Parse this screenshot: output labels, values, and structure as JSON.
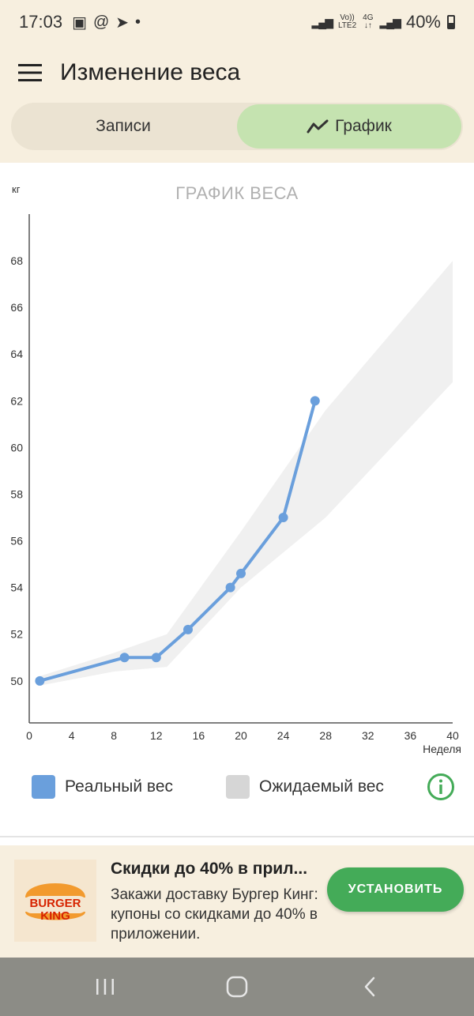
{
  "status_bar": {
    "time": "17:03",
    "net_top": "Vo))",
    "net_bottom": "LTE2",
    "net_type": "4G",
    "battery": "40%"
  },
  "app_bar": {
    "title": "Изменение веса"
  },
  "tabs": [
    {
      "label": "Записи",
      "active": false
    },
    {
      "label": "График",
      "active": true
    }
  ],
  "chart_data": {
    "type": "line",
    "title": "ГРАФИК ВЕСА",
    "ylabel": "кг",
    "xlabel": "Неделя",
    "xlim": [
      0,
      40
    ],
    "ylim": [
      48.2,
      70
    ],
    "x_ticks": [
      0,
      4,
      8,
      12,
      16,
      20,
      24,
      28,
      32,
      36,
      40
    ],
    "y_ticks": [
      50,
      52,
      54,
      56,
      58,
      60,
      62,
      64,
      66,
      68
    ],
    "series": [
      {
        "name": "Реальный вес",
        "color": "#6a9fdc",
        "points": [
          [
            1,
            50.0
          ],
          [
            9,
            51.0
          ],
          [
            12,
            51.0
          ],
          [
            15,
            52.2
          ],
          [
            19,
            54.0
          ],
          [
            20,
            54.6
          ],
          [
            24,
            57.0
          ],
          [
            27,
            62.0
          ]
        ]
      }
    ],
    "expected_band": {
      "name": "Ожидаемый вес",
      "color": "#f0f0f0",
      "upper": [
        [
          1,
          50.2
        ],
        [
          8,
          51.2
        ],
        [
          13,
          52.0
        ],
        [
          20,
          56.4
        ],
        [
          28,
          61.6
        ],
        [
          40,
          68.0
        ]
      ],
      "lower": [
        [
          40,
          62.8
        ],
        [
          28,
          57.0
        ],
        [
          20,
          54.0
        ],
        [
          13,
          50.6
        ],
        [
          8,
          50.4
        ],
        [
          1,
          49.8
        ]
      ]
    }
  },
  "legend": {
    "items": [
      {
        "label": "Реальный вес",
        "color": "#6a9fdc"
      },
      {
        "label": "Ожидаемый вес",
        "color": "#d6d6d6"
      }
    ]
  },
  "ad": {
    "brand_top": "BURGER",
    "brand_bottom": "KING",
    "title": "Скидки до 40% в прил...",
    "body": "Закажи доставку Бургер Кинг: купоны со скидками до 40% в приложении.",
    "button_label": "УСТАНОВИТЬ"
  },
  "colors": {
    "accent_green": "#44ab58",
    "tab_active": "#c5e3b0",
    "header_bg": "#f7efdf"
  }
}
